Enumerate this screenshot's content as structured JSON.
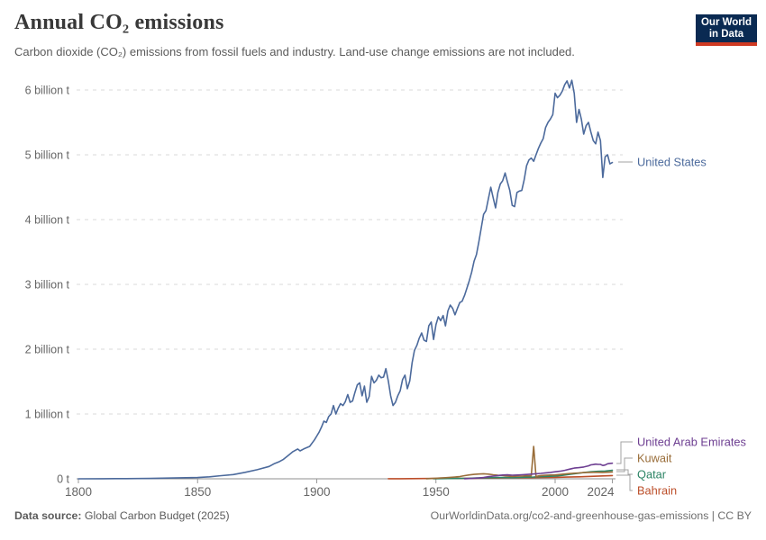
{
  "header": {
    "title": "Annual CO₂ emissions",
    "subtitle": "Carbon dioxide (CO₂) emissions from fossil fuels and industry. Land-use change emissions are not included.",
    "logo": {
      "line1": "Our World",
      "line2": "in Data"
    }
  },
  "footer": {
    "source_label": "Data source:",
    "source_value": "Global Carbon Budget (2025)",
    "credit": "OurWorldinData.org/co2-and-greenhouse-gas-emissions | CC BY"
  },
  "colors": {
    "united_states": "#4C6A9C",
    "united_arab_emirates": "#6D3E91",
    "kuwait": "#996D39",
    "qatar": "#2C8465",
    "bahrain": "#BC4E29",
    "gridline": "#dadada",
    "axis": "#8f8f8f",
    "tick_text": "#666666",
    "connector": "#a3a3a3",
    "logo_bg": "#0a2a52",
    "logo_red": "#cf3a23"
  },
  "chart_data": {
    "type": "line",
    "title": "Annual CO₂ emissions",
    "subtitle": "Carbon dioxide (CO₂) emissions from fossil fuels and industry. Land-use change emissions are not included.",
    "unit": "billion tonnes of CO₂ per year",
    "xlabel": "",
    "ylabel": "",
    "xlim": [
      1800,
      2024
    ],
    "ylim": [
      0,
      6
    ],
    "grid": "horizontal-dashed",
    "legend_position": "right-edge-labels",
    "x_ticks": [
      1800,
      1850,
      1900,
      1950,
      2000,
      2024
    ],
    "y_ticks": [
      {
        "value": 0,
        "label": "0 t"
      },
      {
        "value": 1,
        "label": "1 billion t"
      },
      {
        "value": 2,
        "label": "2 billion t"
      },
      {
        "value": 3,
        "label": "3 billion t"
      },
      {
        "value": 4,
        "label": "4 billion t"
      },
      {
        "value": 5,
        "label": "5 billion t"
      },
      {
        "value": 6,
        "label": "6 billion t"
      }
    ],
    "series": [
      {
        "name": "United States",
        "color": "#4C6A9C",
        "points": [
          [
            1800,
            0.0
          ],
          [
            1810,
            0.001
          ],
          [
            1820,
            0.003
          ],
          [
            1830,
            0.006
          ],
          [
            1840,
            0.012
          ],
          [
            1850,
            0.02
          ],
          [
            1855,
            0.03
          ],
          [
            1860,
            0.048
          ],
          [
            1865,
            0.065
          ],
          [
            1870,
            0.1
          ],
          [
            1875,
            0.14
          ],
          [
            1880,
            0.19
          ],
          [
            1882,
            0.23
          ],
          [
            1884,
            0.26
          ],
          [
            1886,
            0.3
          ],
          [
            1888,
            0.36
          ],
          [
            1890,
            0.42
          ],
          [
            1892,
            0.46
          ],
          [
            1893,
            0.43
          ],
          [
            1895,
            0.47
          ],
          [
            1897,
            0.5
          ],
          [
            1899,
            0.6
          ],
          [
            1900,
            0.66
          ],
          [
            1901,
            0.72
          ],
          [
            1902,
            0.8
          ],
          [
            1903,
            0.89
          ],
          [
            1904,
            0.87
          ],
          [
            1905,
            0.96
          ],
          [
            1906,
            1.0
          ],
          [
            1907,
            1.13
          ],
          [
            1908,
            1.0
          ],
          [
            1909,
            1.09
          ],
          [
            1910,
            1.16
          ],
          [
            1911,
            1.13
          ],
          [
            1912,
            1.19
          ],
          [
            1913,
            1.3
          ],
          [
            1914,
            1.18
          ],
          [
            1915,
            1.2
          ],
          [
            1916,
            1.33
          ],
          [
            1917,
            1.45
          ],
          [
            1918,
            1.48
          ],
          [
            1919,
            1.28
          ],
          [
            1920,
            1.43
          ],
          [
            1921,
            1.18
          ],
          [
            1922,
            1.27
          ],
          [
            1923,
            1.58
          ],
          [
            1924,
            1.48
          ],
          [
            1925,
            1.52
          ],
          [
            1926,
            1.6
          ],
          [
            1927,
            1.56
          ],
          [
            1928,
            1.57
          ],
          [
            1929,
            1.7
          ],
          [
            1930,
            1.51
          ],
          [
            1931,
            1.28
          ],
          [
            1932,
            1.13
          ],
          [
            1933,
            1.18
          ],
          [
            1934,
            1.28
          ],
          [
            1935,
            1.36
          ],
          [
            1936,
            1.53
          ],
          [
            1937,
            1.6
          ],
          [
            1938,
            1.39
          ],
          [
            1939,
            1.51
          ],
          [
            1940,
            1.79
          ],
          [
            1941,
            1.98
          ],
          [
            1942,
            2.06
          ],
          [
            1943,
            2.17
          ],
          [
            1944,
            2.25
          ],
          [
            1945,
            2.14
          ],
          [
            1946,
            2.12
          ],
          [
            1947,
            2.36
          ],
          [
            1948,
            2.42
          ],
          [
            1949,
            2.15
          ],
          [
            1950,
            2.38
          ],
          [
            1951,
            2.5
          ],
          [
            1952,
            2.44
          ],
          [
            1953,
            2.52
          ],
          [
            1954,
            2.36
          ],
          [
            1955,
            2.59
          ],
          [
            1956,
            2.68
          ],
          [
            1957,
            2.63
          ],
          [
            1958,
            2.53
          ],
          [
            1959,
            2.63
          ],
          [
            1960,
            2.72
          ],
          [
            1961,
            2.74
          ],
          [
            1962,
            2.83
          ],
          [
            1963,
            2.94
          ],
          [
            1964,
            3.06
          ],
          [
            1965,
            3.19
          ],
          [
            1966,
            3.36
          ],
          [
            1967,
            3.46
          ],
          [
            1968,
            3.66
          ],
          [
            1969,
            3.87
          ],
          [
            1970,
            4.08
          ],
          [
            1971,
            4.14
          ],
          [
            1972,
            4.32
          ],
          [
            1973,
            4.5
          ],
          [
            1974,
            4.34
          ],
          [
            1975,
            4.18
          ],
          [
            1976,
            4.42
          ],
          [
            1977,
            4.55
          ],
          [
            1978,
            4.6
          ],
          [
            1979,
            4.72
          ],
          [
            1980,
            4.58
          ],
          [
            1981,
            4.45
          ],
          [
            1982,
            4.22
          ],
          [
            1983,
            4.2
          ],
          [
            1984,
            4.42
          ],
          [
            1985,
            4.44
          ],
          [
            1986,
            4.45
          ],
          [
            1987,
            4.61
          ],
          [
            1988,
            4.83
          ],
          [
            1989,
            4.92
          ],
          [
            1990,
            4.95
          ],
          [
            1991,
            4.9
          ],
          [
            1992,
            5.0
          ],
          [
            1993,
            5.1
          ],
          [
            1994,
            5.18
          ],
          [
            1995,
            5.25
          ],
          [
            1996,
            5.42
          ],
          [
            1997,
            5.5
          ],
          [
            1998,
            5.55
          ],
          [
            1999,
            5.62
          ],
          [
            2000,
            5.95
          ],
          [
            2001,
            5.88
          ],
          [
            2002,
            5.92
          ],
          [
            2003,
            5.98
          ],
          [
            2004,
            6.08
          ],
          [
            2005,
            6.14
          ],
          [
            2006,
            6.03
          ],
          [
            2007,
            6.15
          ],
          [
            2008,
            5.95
          ],
          [
            2009,
            5.5
          ],
          [
            2010,
            5.7
          ],
          [
            2011,
            5.55
          ],
          [
            2012,
            5.32
          ],
          [
            2013,
            5.45
          ],
          [
            2014,
            5.5
          ],
          [
            2015,
            5.35
          ],
          [
            2016,
            5.22
          ],
          [
            2017,
            5.17
          ],
          [
            2018,
            5.35
          ],
          [
            2019,
            5.22
          ],
          [
            2020,
            4.65
          ],
          [
            2021,
            4.97
          ],
          [
            2022,
            5.0
          ],
          [
            2023,
            4.86
          ],
          [
            2024,
            4.88
          ]
        ]
      },
      {
        "name": "United Arab Emirates",
        "color": "#6D3E91",
        "points": [
          [
            1962,
            0.002
          ],
          [
            1964,
            0.004
          ],
          [
            1966,
            0.008
          ],
          [
            1968,
            0.013
          ],
          [
            1970,
            0.02
          ],
          [
            1972,
            0.032
          ],
          [
            1974,
            0.042
          ],
          [
            1976,
            0.05
          ],
          [
            1978,
            0.058
          ],
          [
            1980,
            0.061
          ],
          [
            1982,
            0.056
          ],
          [
            1984,
            0.058
          ],
          [
            1986,
            0.062
          ],
          [
            1988,
            0.066
          ],
          [
            1990,
            0.072
          ],
          [
            1992,
            0.078
          ],
          [
            1994,
            0.084
          ],
          [
            1996,
            0.092
          ],
          [
            1998,
            0.098
          ],
          [
            2000,
            0.108
          ],
          [
            2002,
            0.116
          ],
          [
            2004,
            0.13
          ],
          [
            2006,
            0.148
          ],
          [
            2008,
            0.165
          ],
          [
            2010,
            0.172
          ],
          [
            2012,
            0.182
          ],
          [
            2014,
            0.2
          ],
          [
            2015,
            0.215
          ],
          [
            2016,
            0.22
          ],
          [
            2017,
            0.226
          ],
          [
            2018,
            0.222
          ],
          [
            2019,
            0.222
          ],
          [
            2020,
            0.206
          ],
          [
            2021,
            0.212
          ],
          [
            2022,
            0.232
          ],
          [
            2023,
            0.238
          ],
          [
            2024,
            0.24
          ]
        ]
      },
      {
        "name": "Kuwait",
        "color": "#996D39",
        "points": [
          [
            1946,
            0.002
          ],
          [
            1948,
            0.004
          ],
          [
            1950,
            0.008
          ],
          [
            1952,
            0.012
          ],
          [
            1954,
            0.016
          ],
          [
            1956,
            0.022
          ],
          [
            1958,
            0.028
          ],
          [
            1960,
            0.035
          ],
          [
            1962,
            0.048
          ],
          [
            1964,
            0.06
          ],
          [
            1966,
            0.068
          ],
          [
            1968,
            0.074
          ],
          [
            1970,
            0.078
          ],
          [
            1972,
            0.072
          ],
          [
            1974,
            0.062
          ],
          [
            1976,
            0.055
          ],
          [
            1978,
            0.052
          ],
          [
            1980,
            0.042
          ],
          [
            1982,
            0.036
          ],
          [
            1984,
            0.04
          ],
          [
            1986,
            0.042
          ],
          [
            1988,
            0.046
          ],
          [
            1990,
            0.046
          ],
          [
            1991,
            0.5
          ],
          [
            1992,
            0.034
          ],
          [
            1993,
            0.044
          ],
          [
            1994,
            0.05
          ],
          [
            1996,
            0.056
          ],
          [
            1998,
            0.058
          ],
          [
            2000,
            0.06
          ],
          [
            2002,
            0.066
          ],
          [
            2004,
            0.074
          ],
          [
            2006,
            0.08
          ],
          [
            2008,
            0.086
          ],
          [
            2010,
            0.09
          ],
          [
            2012,
            0.096
          ],
          [
            2014,
            0.098
          ],
          [
            2016,
            0.1
          ],
          [
            2018,
            0.1
          ],
          [
            2020,
            0.099
          ],
          [
            2022,
            0.102
          ],
          [
            2024,
            0.105
          ]
        ]
      },
      {
        "name": "Qatar",
        "color": "#2C8465",
        "points": [
          [
            1949,
            0.001
          ],
          [
            1952,
            0.003
          ],
          [
            1955,
            0.004
          ],
          [
            1958,
            0.005
          ],
          [
            1961,
            0.007
          ],
          [
            1964,
            0.009
          ],
          [
            1967,
            0.012
          ],
          [
            1970,
            0.015
          ],
          [
            1973,
            0.018
          ],
          [
            1976,
            0.02
          ],
          [
            1979,
            0.021
          ],
          [
            1982,
            0.018
          ],
          [
            1985,
            0.021
          ],
          [
            1988,
            0.025
          ],
          [
            1991,
            0.028
          ],
          [
            1994,
            0.033
          ],
          [
            1997,
            0.038
          ],
          [
            2000,
            0.043
          ],
          [
            2003,
            0.053
          ],
          [
            2006,
            0.068
          ],
          [
            2009,
            0.082
          ],
          [
            2012,
            0.096
          ],
          [
            2015,
            0.108
          ],
          [
            2018,
            0.115
          ],
          [
            2021,
            0.12
          ],
          [
            2024,
            0.13
          ]
        ]
      },
      {
        "name": "Bahrain",
        "color": "#BC4E29",
        "points": [
          [
            1930,
            0.001
          ],
          [
            1935,
            0.002
          ],
          [
            1940,
            0.003
          ],
          [
            1945,
            0.004
          ],
          [
            1950,
            0.005
          ],
          [
            1955,
            0.006
          ],
          [
            1960,
            0.007
          ],
          [
            1965,
            0.009
          ],
          [
            1970,
            0.011
          ],
          [
            1975,
            0.013
          ],
          [
            1980,
            0.016
          ],
          [
            1985,
            0.017
          ],
          [
            1990,
            0.018
          ],
          [
            1995,
            0.02
          ],
          [
            2000,
            0.022
          ],
          [
            2005,
            0.027
          ],
          [
            2010,
            0.031
          ],
          [
            2015,
            0.037
          ],
          [
            2020,
            0.044
          ],
          [
            2024,
            0.05
          ]
        ]
      }
    ]
  }
}
